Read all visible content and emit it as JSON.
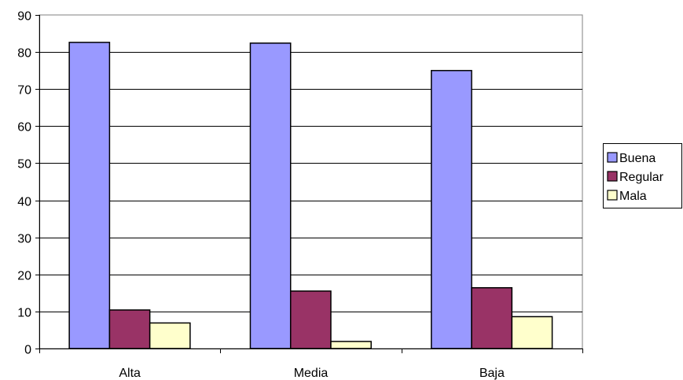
{
  "chart_data": {
    "type": "bar",
    "title": "",
    "xlabel": "",
    "ylabel": "",
    "categories": [
      "Alta",
      "Media",
      "Baja"
    ],
    "series": [
      {
        "name": "Buena",
        "color": "#9999ff",
        "values": [
          82.6,
          82.4,
          75.0
        ]
      },
      {
        "name": "Regular",
        "color": "#993366",
        "values": [
          10.4,
          15.5,
          16.4
        ]
      },
      {
        "name": "Mala",
        "color": "#ffffcc",
        "values": [
          6.9,
          1.9,
          8.6
        ]
      }
    ],
    "ylim": [
      0,
      90
    ],
    "yticks": [
      0,
      10,
      20,
      30,
      40,
      50,
      60,
      70,
      80,
      90
    ],
    "grid": true,
    "legend_position": "right"
  }
}
